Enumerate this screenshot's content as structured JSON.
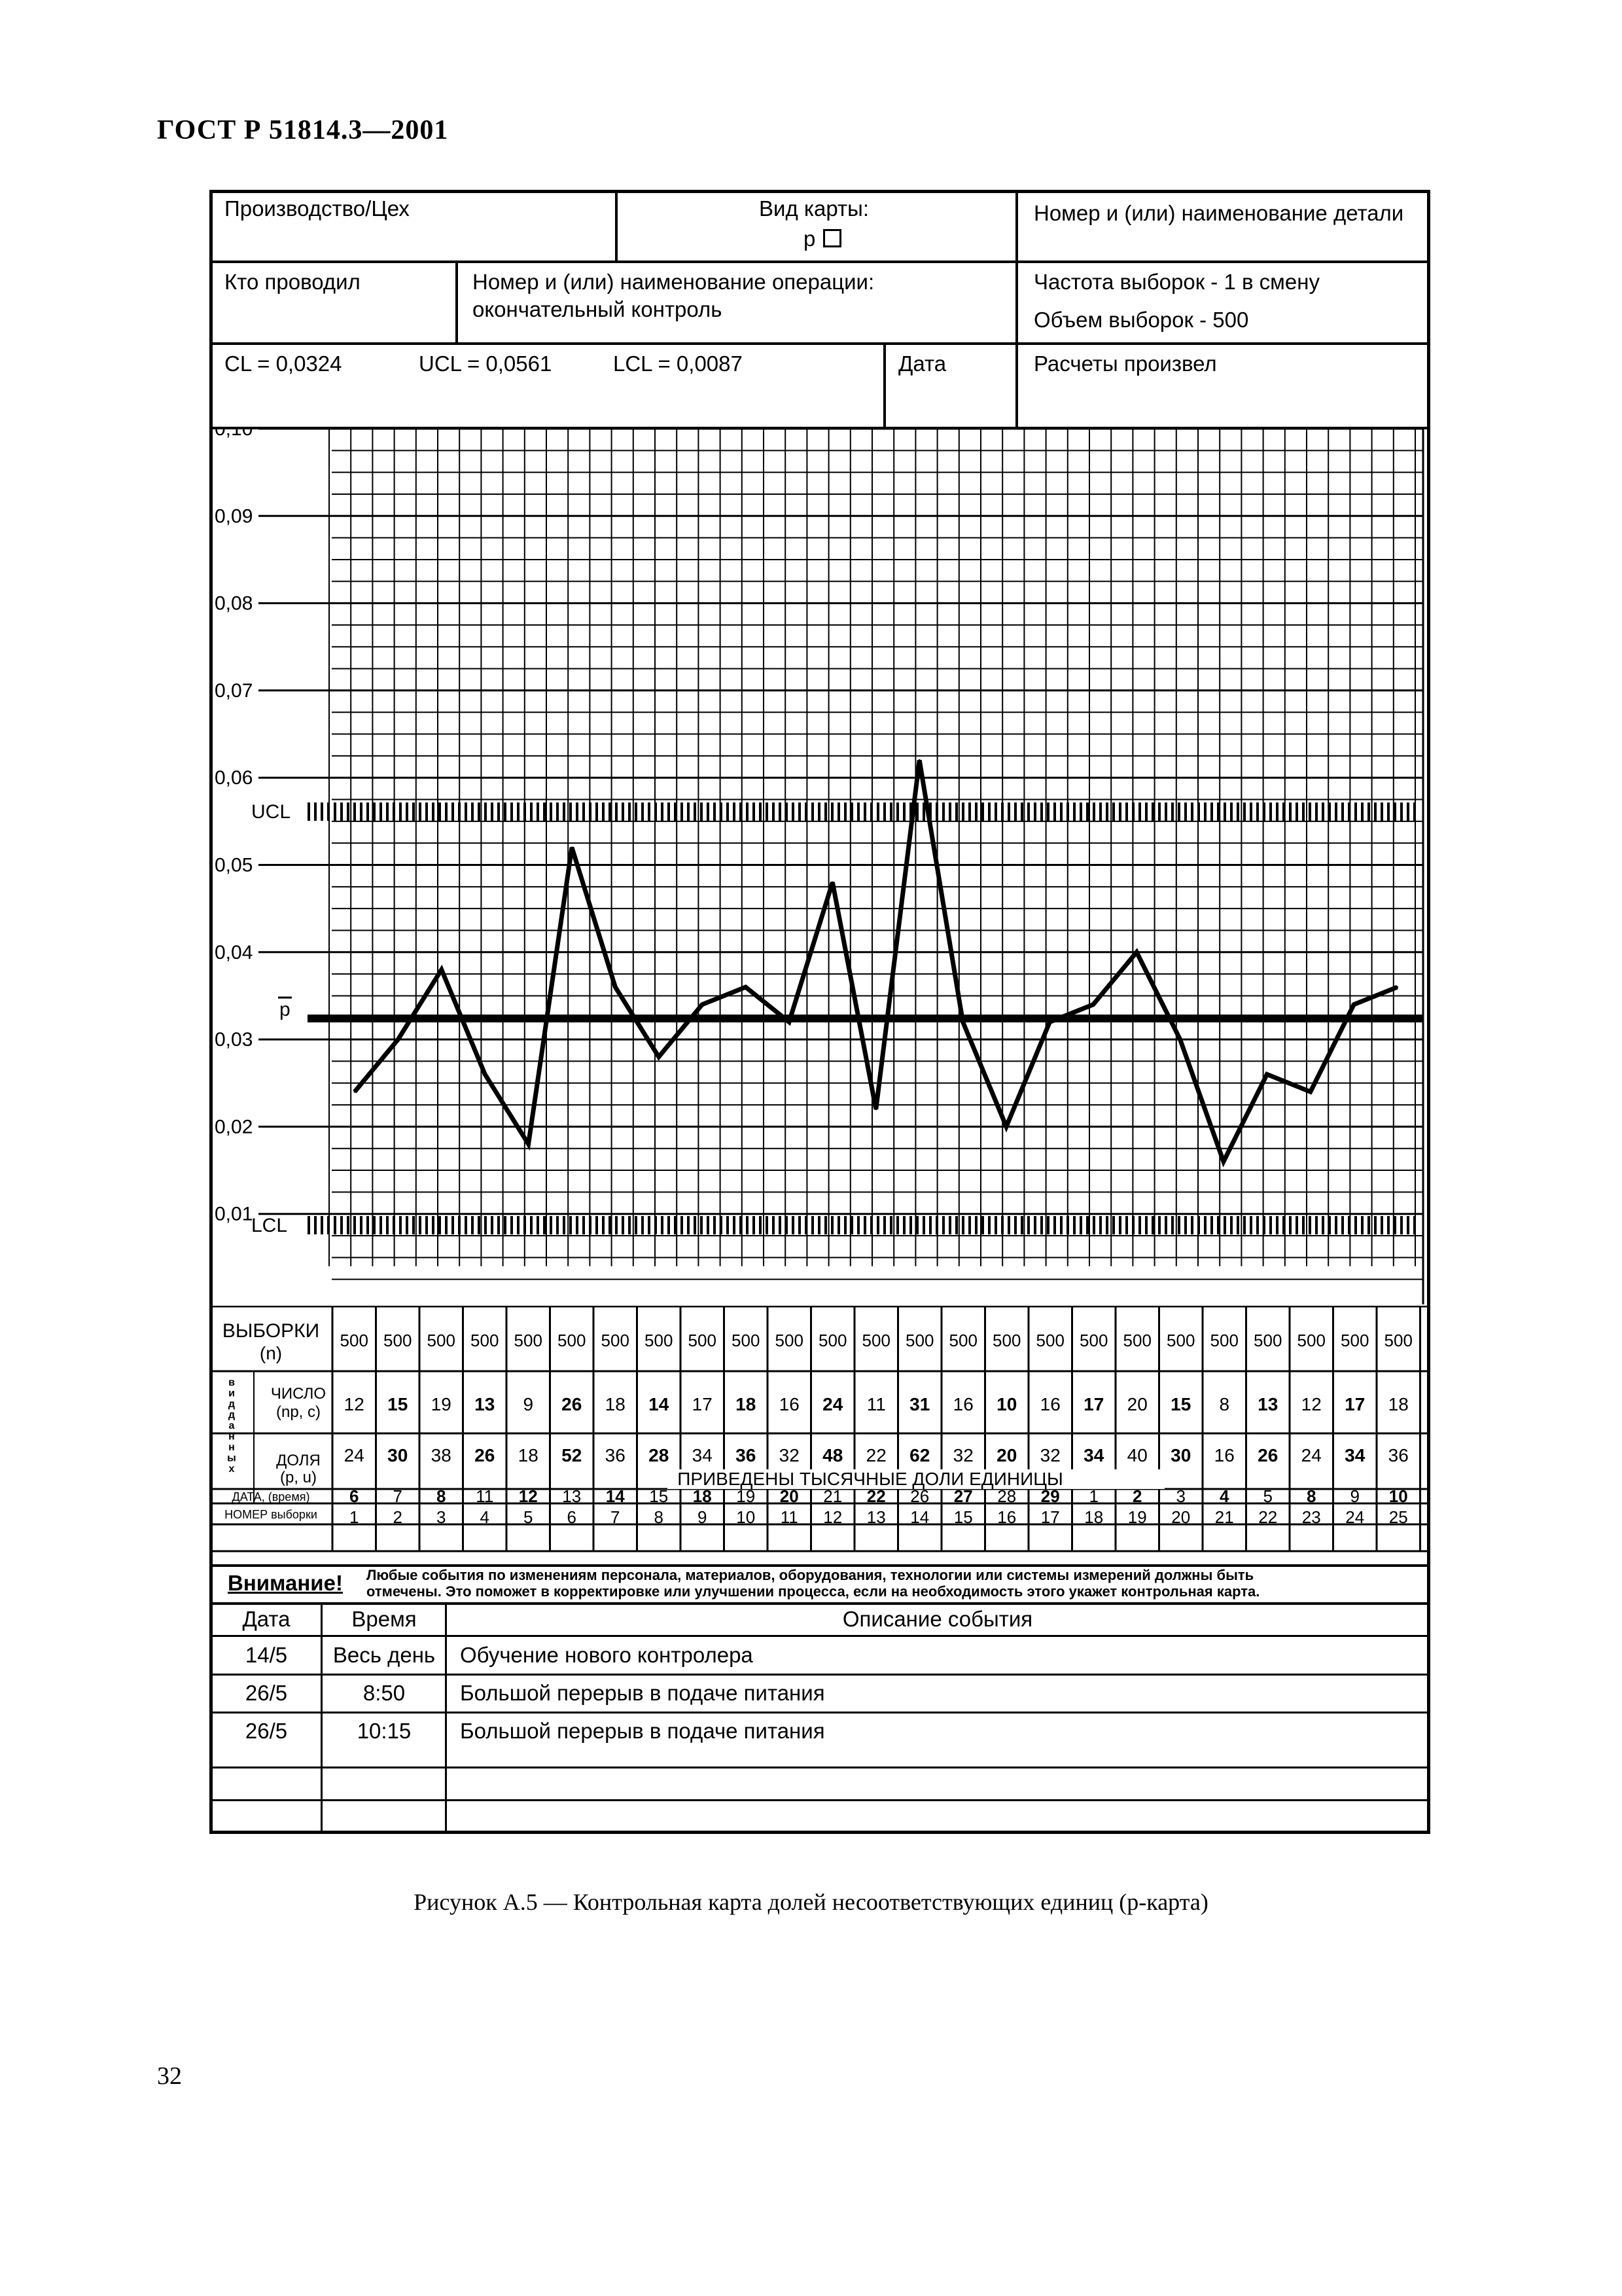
{
  "document": {
    "standard": "ГОСТ Р 51814.3—2001",
    "caption": "Рисунок А.5 — Контрольная карта долей несоответствующих единиц (p-карта)",
    "page_number": "32"
  },
  "header": {
    "production_label": "Производство/Цех",
    "chart_kind_label": "Вид карты:",
    "chart_kind_value": "p",
    "part_label": "Номер и (или) наименование детали",
    "inspector_label": "Кто проводил",
    "operation_label": "Номер и (или) наименование операции:",
    "operation_value": "окончательный контроль",
    "frequency": "Частота выборок - 1 в смену",
    "volume": "Объем выборок - 500",
    "cl": "CL = 0,0324",
    "ucl": "UCL = 0,0561",
    "lcl": "LCL = 0,0087",
    "date_label": "Дата",
    "calc_label": "Расчеты произвел"
  },
  "chart_data": {
    "type": "line",
    "x": [
      1,
      2,
      3,
      4,
      5,
      6,
      7,
      8,
      9,
      10,
      11,
      12,
      13,
      14,
      15,
      16,
      17,
      18,
      19,
      20,
      21,
      22,
      23,
      24,
      25
    ],
    "y": [
      0.024,
      0.03,
      0.038,
      0.026,
      0.018,
      0.052,
      0.036,
      0.028,
      0.034,
      0.036,
      0.032,
      0.048,
      0.022,
      0.062,
      0.032,
      0.02,
      0.032,
      0.034,
      0.04,
      0.03,
      0.016,
      0.026,
      0.024,
      0.034,
      0.036
    ],
    "ylim": [
      0.0,
      0.1
    ],
    "y_ticks": [
      "0,10",
      "0,09",
      "0,08",
      "0,07",
      "0,06",
      "0,05",
      "0,04",
      "0,03",
      "0,02",
      "0,01"
    ],
    "y_tick_values": [
      0.1,
      0.09,
      0.08,
      0.07,
      0.06,
      0.05,
      0.04,
      0.03,
      0.02,
      0.01
    ],
    "ucl": 0.0561,
    "lcl": 0.0087,
    "center": 0.0324,
    "ucl_label": "UCL",
    "lcl_label": "LCL",
    "center_label": "p"
  },
  "data_table": {
    "samples_label": "ВЫБОРКИ",
    "samples_sub": "(n)",
    "data_kind_label": "вид данных",
    "count_label": "ЧИСЛО",
    "count_sub": "(np, c)",
    "share_label": "ДОЛЯ",
    "share_sub": "(p, u)",
    "date_label": "ДАТА, (время)",
    "number_label": "НОМЕР выборки",
    "thousandths_note": "ПРИВЕДЕНЫ ТЫСЯЧНЫЕ ДОЛИ ЕДИНИЦЫ",
    "n": [
      "500",
      "500",
      "500",
      "500",
      "500",
      "500",
      "500",
      "500",
      "500",
      "500",
      "500",
      "500",
      "500",
      "500",
      "500",
      "500",
      "500",
      "500",
      "500",
      "500",
      "500",
      "500",
      "500",
      "500",
      "500"
    ],
    "counts": [
      "12",
      "15",
      "19",
      "13",
      "9",
      "26",
      "18",
      "14",
      "17",
      "18",
      "16",
      "24",
      "11",
      "31",
      "16",
      "10",
      "16",
      "17",
      "20",
      "15",
      "8",
      "13",
      "12",
      "17",
      "18"
    ],
    "shares": [
      "24",
      "30",
      "38",
      "26",
      "18",
      "52",
      "36",
      "28",
      "34",
      "36",
      "32",
      "48",
      "22",
      "62",
      "32",
      "20",
      "32",
      "34",
      "40",
      "30",
      "16",
      "26",
      "24",
      "34",
      "36"
    ],
    "dates": [
      "6",
      "7",
      "8",
      "11",
      "12",
      "13",
      "14",
      "15",
      "18",
      "19",
      "20",
      "21",
      "22",
      "26",
      "27",
      "28",
      "29",
      "1",
      "2",
      "3",
      "4",
      "5",
      "8",
      "9",
      "10"
    ],
    "numbers": [
      "1",
      "2",
      "3",
      "4",
      "5",
      "6",
      "7",
      "8",
      "9",
      "10",
      "11",
      "12",
      "13",
      "14",
      "15",
      "16",
      "17",
      "18",
      "19",
      "20",
      "21",
      "22",
      "23",
      "24",
      "25"
    ]
  },
  "attention": {
    "label": "Внимание!",
    "line1": "Любые события по изменениям персонала, материалов, оборудования, технологии или системы измерений должны быть",
    "line2": "отмечены. Это поможет в корректировке или улучшении процесса, если на необходимость этого укажет контрольная карта."
  },
  "events": {
    "col_date": "Дата",
    "col_time": "Время",
    "col_desc": "Описание события",
    "rows": [
      {
        "date": "14/5",
        "time": "Весь день",
        "desc": "Обучение нового контролера"
      },
      {
        "date": "26/5",
        "time": "8:50",
        "desc": "Большой перерыв в подаче питания"
      },
      {
        "date": "26/5",
        "time": "10:15",
        "desc": "Большой перерыв в подаче питания"
      }
    ]
  }
}
